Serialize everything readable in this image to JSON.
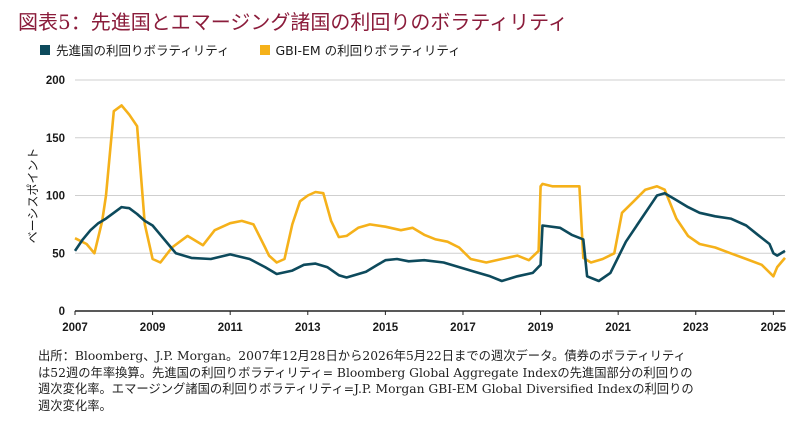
{
  "title": "図表5：先進国とエマージング諸国の利回りのボラティリティ",
  "legend": [
    {
      "label": "先進国の利回りボラティリティ",
      "color": "#0d4a5c"
    },
    {
      "label": "GBI-EM の利回りボラティリティ",
      "color": "#f5b11a"
    }
  ],
  "footnote": [
    "出所：Bloomberg、J.P. Morgan。2007年12月28日から2026年5月22日までの週次データ。債券のボラティリティ",
    "は52週の年率換算。先進国の利回りボラティリティ= Bloomberg Global Aggregate Indexの先進国部分の利回りの",
    "週次変化率。エマージング諸国の利回りボラティリティ=J.P. Morgan GBI-EM Global Diversified Indexの利回りの",
    "週次変化率。"
  ],
  "chart_data": {
    "type": "line",
    "ylabel": "ベーシスポイント",
    "ylim": [
      0,
      200
    ],
    "yticks": [
      0,
      50,
      100,
      150,
      200
    ],
    "xlim": [
      2007,
      2025.3
    ],
    "xticks": [
      "2007",
      "2009",
      "2011",
      "2013",
      "2015",
      "2017",
      "2019",
      "2021",
      "2023",
      "2025"
    ],
    "grid": "horizontal",
    "series": [
      {
        "name": "先進国の利回りボラティリティ",
        "color": "#0d4a5c",
        "x": [
          2007.0,
          2007.2,
          2007.4,
          2007.6,
          2007.8,
          2008.0,
          2008.2,
          2008.4,
          2008.6,
          2008.8,
          2009.0,
          2009.2,
          2009.4,
          2009.6,
          2010.0,
          2010.5,
          2011.0,
          2011.5,
          2011.9,
          2012.2,
          2012.6,
          2012.9,
          2013.2,
          2013.5,
          2013.8,
          2014.0,
          2014.5,
          2014.8,
          2015.0,
          2015.3,
          2015.6,
          2016.0,
          2016.5,
          2016.9,
          2017.3,
          2017.7,
          2018.0,
          2018.4,
          2018.8,
          2019.0,
          2019.05,
          2019.5,
          2019.8,
          2020.1,
          2020.2,
          2020.5,
          2020.8,
          2021.2,
          2021.6,
          2021.9,
          2022.0,
          2022.2,
          2022.5,
          2022.8,
          2023.1,
          2023.5,
          2023.9,
          2024.3,
          2024.6,
          2024.9,
          2025.0,
          2025.1,
          2025.3
        ],
        "values": [
          52,
          62,
          70,
          76,
          80,
          85,
          90,
          89,
          84,
          78,
          74,
          66,
          58,
          50,
          46,
          45,
          49,
          45,
          38,
          32,
          35,
          40,
          41,
          38,
          31,
          29,
          34,
          40,
          44,
          45,
          43,
          44,
          42,
          38,
          34,
          30,
          26,
          30,
          33,
          40,
          74,
          72,
          66,
          62,
          30,
          26,
          33,
          60,
          80,
          95,
          100,
          102,
          96,
          90,
          85,
          82,
          80,
          74,
          66,
          58,
          50,
          48,
          52
        ]
      },
      {
        "name": "GBI-EM の利回りボラティリティ",
        "color": "#f5b11a",
        "x": [
          2007.0,
          2007.3,
          2007.5,
          2007.7,
          2007.8,
          2008.0,
          2008.2,
          2008.4,
          2008.6,
          2008.8,
          2009.0,
          2009.2,
          2009.5,
          2009.9,
          2010.3,
          2010.6,
          2011.0,
          2011.3,
          2011.6,
          2011.9,
          2012.0,
          2012.2,
          2012.4,
          2012.6,
          2012.8,
          2013.0,
          2013.2,
          2013.4,
          2013.6,
          2013.8,
          2014.0,
          2014.3,
          2014.6,
          2015.0,
          2015.4,
          2015.7,
          2016.0,
          2016.3,
          2016.6,
          2016.9,
          2017.2,
          2017.6,
          2018.0,
          2018.4,
          2018.7,
          2018.95,
          2019.0,
          2019.05,
          2019.3,
          2019.6,
          2020.0,
          2020.1,
          2020.3,
          2020.6,
          2020.9,
          2021.1,
          2021.4,
          2021.7,
          2022.0,
          2022.2,
          2022.5,
          2022.8,
          2023.1,
          2023.5,
          2023.9,
          2024.3,
          2024.7,
          2025.0,
          2025.1,
          2025.3
        ],
        "values": [
          63,
          58,
          50,
          78,
          100,
          173,
          178,
          170,
          160,
          75,
          45,
          42,
          55,
          65,
          57,
          70,
          76,
          78,
          75,
          55,
          48,
          42,
          45,
          75,
          95,
          100,
          103,
          102,
          78,
          64,
          65,
          72,
          75,
          73,
          70,
          72,
          66,
          62,
          60,
          55,
          45,
          42,
          45,
          48,
          44,
          52,
          108,
          110,
          108,
          108,
          108,
          46,
          42,
          45,
          50,
          85,
          95,
          105,
          108,
          105,
          80,
          65,
          58,
          55,
          50,
          45,
          40,
          30,
          38,
          46
        ]
      }
    ]
  }
}
